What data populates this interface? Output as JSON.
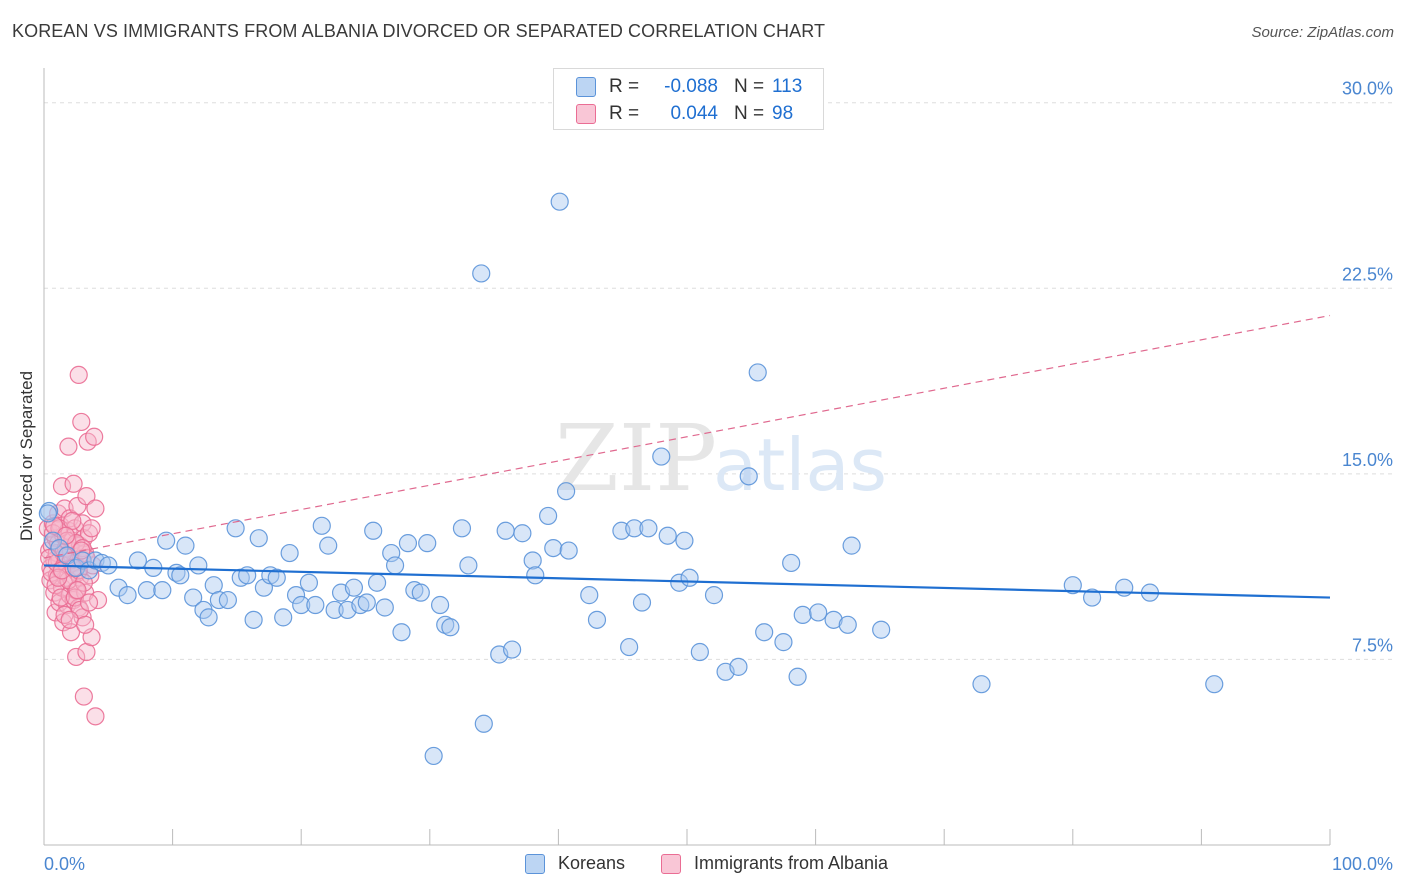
{
  "header": {
    "title": "KOREAN VS IMMIGRANTS FROM ALBANIA DIVORCED OR SEPARATED CORRELATION CHART",
    "source": "Source: ZipAtlas.com"
  },
  "watermark": {
    "zip": "ZIP",
    "atlas": "atlas"
  },
  "colors": {
    "blue_fill": "#a9c8ef",
    "blue_stroke": "#5b93d9",
    "blue_line": "#1f6fd1",
    "pink_fill": "#f6b8cb",
    "pink_stroke": "#ea6d94",
    "pink_line": "#e0698f",
    "grid": "#dddddd",
    "tick_label": "#4a86d0"
  },
  "legend_top": {
    "rows": [
      {
        "series": "Koreans",
        "r_label": "R =",
        "r_value": "-0.088",
        "n_label": "N =",
        "n_value": "113"
      },
      {
        "series": "Immigrants from Albania",
        "r_label": "R =",
        "r_value": "0.044",
        "n_label": "N =",
        "n_value": "98"
      }
    ]
  },
  "legend_bottom": {
    "items": [
      "Koreans",
      "Immigrants from Albania"
    ]
  },
  "chart_data": {
    "type": "scatter",
    "title": "KOREAN VS IMMIGRANTS FROM ALBANIA DIVORCED OR SEPARATED CORRELATION CHART",
    "xlabel": "",
    "ylabel": "Divorced or Separated",
    "xlim": [
      0,
      100
    ],
    "ylim": [
      0,
      31
    ],
    "x_tick_labels": [
      "0.0%",
      "100.0%"
    ],
    "y_ticks": [
      7.5,
      15.0,
      22.5,
      30.0
    ],
    "y_tick_labels": [
      "7.5%",
      "15.0%",
      "22.5%",
      "30.0%"
    ],
    "grid": true,
    "series": [
      {
        "name": "Koreans",
        "r": -0.088,
        "n": 113,
        "trend": {
          "x": [
            0,
            100
          ],
          "y": [
            11.3,
            10.0
          ],
          "style": "solid"
        },
        "points": [
          [
            0.4,
            13.5
          ],
          [
            0.7,
            12.3
          ],
          [
            1.2,
            12.0
          ],
          [
            1.8,
            11.7
          ],
          [
            2.5,
            11.2
          ],
          [
            3.0,
            11.5
          ],
          [
            3.5,
            11.1
          ],
          [
            4.0,
            11.5
          ],
          [
            4.5,
            11.4
          ],
          [
            5.0,
            11.3
          ],
          [
            5.8,
            10.4
          ],
          [
            6.5,
            10.1
          ],
          [
            7.3,
            11.5
          ],
          [
            8.0,
            10.3
          ],
          [
            8.5,
            11.2
          ],
          [
            9.2,
            10.3
          ],
          [
            9.5,
            12.3
          ],
          [
            10.3,
            11.0
          ],
          [
            10.6,
            10.9
          ],
          [
            11.0,
            12.1
          ],
          [
            11.6,
            10.0
          ],
          [
            12.0,
            11.3
          ],
          [
            12.4,
            9.5
          ],
          [
            12.8,
            9.2
          ],
          [
            13.2,
            10.5
          ],
          [
            13.6,
            9.9
          ],
          [
            14.3,
            9.9
          ],
          [
            14.9,
            12.8
          ],
          [
            15.3,
            10.8
          ],
          [
            15.8,
            10.9
          ],
          [
            16.3,
            9.1
          ],
          [
            16.7,
            12.4
          ],
          [
            17.1,
            10.4
          ],
          [
            17.6,
            10.9
          ],
          [
            18.1,
            10.8
          ],
          [
            18.6,
            9.2
          ],
          [
            19.1,
            11.8
          ],
          [
            19.6,
            10.1
          ],
          [
            20.0,
            9.7
          ],
          [
            20.6,
            10.6
          ],
          [
            21.1,
            9.7
          ],
          [
            21.6,
            12.9
          ],
          [
            22.1,
            12.1
          ],
          [
            22.6,
            9.5
          ],
          [
            23.1,
            10.2
          ],
          [
            23.6,
            9.5
          ],
          [
            24.1,
            10.4
          ],
          [
            24.6,
            9.7
          ],
          [
            25.1,
            9.8
          ],
          [
            25.6,
            12.7
          ],
          [
            25.9,
            10.6
          ],
          [
            26.5,
            9.6
          ],
          [
            27.0,
            11.8
          ],
          [
            27.3,
            11.3
          ],
          [
            27.8,
            8.6
          ],
          [
            28.3,
            12.2
          ],
          [
            28.8,
            10.3
          ],
          [
            29.3,
            10.2
          ],
          [
            29.8,
            12.2
          ],
          [
            30.3,
            3.6
          ],
          [
            30.8,
            9.7
          ],
          [
            31.2,
            8.9
          ],
          [
            31.6,
            8.8
          ],
          [
            32.5,
            12.8
          ],
          [
            33.0,
            11.3
          ],
          [
            34.0,
            23.1
          ],
          [
            34.2,
            4.9
          ],
          [
            35.4,
            7.7
          ],
          [
            35.9,
            12.7
          ],
          [
            36.4,
            7.9
          ],
          [
            37.2,
            12.6
          ],
          [
            38.0,
            11.5
          ],
          [
            38.2,
            10.9
          ],
          [
            39.2,
            13.3
          ],
          [
            39.6,
            12.0
          ],
          [
            40.1,
            26.0
          ],
          [
            40.6,
            14.3
          ],
          [
            40.8,
            11.9
          ],
          [
            42.4,
            10.1
          ],
          [
            43.0,
            9.1
          ],
          [
            44.9,
            12.7
          ],
          [
            45.5,
            8.0
          ],
          [
            45.9,
            12.8
          ],
          [
            46.5,
            9.8
          ],
          [
            47.0,
            12.8
          ],
          [
            48.0,
            15.7
          ],
          [
            48.5,
            12.5
          ],
          [
            49.4,
            10.6
          ],
          [
            49.8,
            12.3
          ],
          [
            50.2,
            10.8
          ],
          [
            51.0,
            7.8
          ],
          [
            52.1,
            10.1
          ],
          [
            53.0,
            7.0
          ],
          [
            54.0,
            7.2
          ],
          [
            54.8,
            14.9
          ],
          [
            55.5,
            19.1
          ],
          [
            56.0,
            8.6
          ],
          [
            57.5,
            8.2
          ],
          [
            58.1,
            11.4
          ],
          [
            58.6,
            6.8
          ],
          [
            59.0,
            9.3
          ],
          [
            60.2,
            9.4
          ],
          [
            61.4,
            9.1
          ],
          [
            62.5,
            8.9
          ],
          [
            62.8,
            12.1
          ],
          [
            65.1,
            8.7
          ],
          [
            72.9,
            6.5
          ],
          [
            80.0,
            10.5
          ],
          [
            81.5,
            10.0
          ],
          [
            84.0,
            10.4
          ],
          [
            86.0,
            10.2
          ],
          [
            91.0,
            6.5
          ],
          [
            0.3,
            13.4
          ]
        ]
      },
      {
        "name": "Immigrants from Albania",
        "r": 0.044,
        "n": 98,
        "trend": {
          "x": [
            0,
            100
          ],
          "y": [
            11.6,
            21.4
          ],
          "style": "dashed"
        },
        "points": [
          [
            0.3,
            12.8
          ],
          [
            0.4,
            11.9
          ],
          [
            0.5,
            11.2
          ],
          [
            0.5,
            10.7
          ],
          [
            0.6,
            12.1
          ],
          [
            0.7,
            13.0
          ],
          [
            0.8,
            11.5
          ],
          [
            0.8,
            10.2
          ],
          [
            0.9,
            9.4
          ],
          [
            0.9,
            12.4
          ],
          [
            1.0,
            11.8
          ],
          [
            1.0,
            10.9
          ],
          [
            1.1,
            13.4
          ],
          [
            1.1,
            12.2
          ],
          [
            1.2,
            11.5
          ],
          [
            1.2,
            9.8
          ],
          [
            1.3,
            12.9
          ],
          [
            1.3,
            11.1
          ],
          [
            1.4,
            14.5
          ],
          [
            1.4,
            10.4
          ],
          [
            1.5,
            12.5
          ],
          [
            1.5,
            9.0
          ],
          [
            1.6,
            11.7
          ],
          [
            1.6,
            13.6
          ],
          [
            1.7,
            10.8
          ],
          [
            1.7,
            12.0
          ],
          [
            1.8,
            9.7
          ],
          [
            1.8,
            11.3
          ],
          [
            1.9,
            16.1
          ],
          [
            1.9,
            12.7
          ],
          [
            2.0,
            10.1
          ],
          [
            2.0,
            13.2
          ],
          [
            2.1,
            11.9
          ],
          [
            2.1,
            8.6
          ],
          [
            2.2,
            12.3
          ],
          [
            2.2,
            10.6
          ],
          [
            2.3,
            9.9
          ],
          [
            2.3,
            14.6
          ],
          [
            2.4,
            11.4
          ],
          [
            2.4,
            12.8
          ],
          [
            2.5,
            10.3
          ],
          [
            2.5,
            7.6
          ],
          [
            2.6,
            13.7
          ],
          [
            2.6,
            11.0
          ],
          [
            2.7,
            19.0
          ],
          [
            2.7,
            9.6
          ],
          [
            2.8,
            12.1
          ],
          [
            2.8,
            10.8
          ],
          [
            2.9,
            17.1
          ],
          [
            2.9,
            11.6
          ],
          [
            3.0,
            13.0
          ],
          [
            3.0,
            9.2
          ],
          [
            3.1,
            12.4
          ],
          [
            3.1,
            6.0
          ],
          [
            3.2,
            10.2
          ],
          [
            3.2,
            11.8
          ],
          [
            3.3,
            14.1
          ],
          [
            3.3,
            7.8
          ],
          [
            3.4,
            16.3
          ],
          [
            3.5,
            12.6
          ],
          [
            3.6,
            10.9
          ],
          [
            3.7,
            8.4
          ],
          [
            3.8,
            11.3
          ],
          [
            4.0,
            13.6
          ],
          [
            4.2,
            9.9
          ],
          [
            3.9,
            16.5
          ],
          [
            4.0,
            5.2
          ],
          [
            0.6,
            11.0
          ],
          [
            0.7,
            12.6
          ],
          [
            0.9,
            10.5
          ],
          [
            1.0,
            11.4
          ],
          [
            1.2,
            12.8
          ],
          [
            1.3,
            10.0
          ],
          [
            1.5,
            11.8
          ],
          [
            1.6,
            9.3
          ],
          [
            1.8,
            12.3
          ],
          [
            1.9,
            10.7
          ],
          [
            2.1,
            11.5
          ],
          [
            2.2,
            13.1
          ],
          [
            2.4,
            10.0
          ],
          [
            2.5,
            12.2
          ],
          [
            2.7,
            11.1
          ],
          [
            2.8,
            9.5
          ],
          [
            3.0,
            12.0
          ],
          [
            3.1,
            10.6
          ],
          [
            3.3,
            11.6
          ],
          [
            3.5,
            9.8
          ],
          [
            3.7,
            12.8
          ],
          [
            0.4,
            11.6
          ],
          [
            0.8,
            12.9
          ],
          [
            1.1,
            10.8
          ],
          [
            1.4,
            11.1
          ],
          [
            1.7,
            12.5
          ],
          [
            2.0,
            9.1
          ],
          [
            2.3,
            11.2
          ],
          [
            2.6,
            10.3
          ],
          [
            2.9,
            11.9
          ],
          [
            3.2,
            8.9
          ]
        ]
      }
    ]
  }
}
